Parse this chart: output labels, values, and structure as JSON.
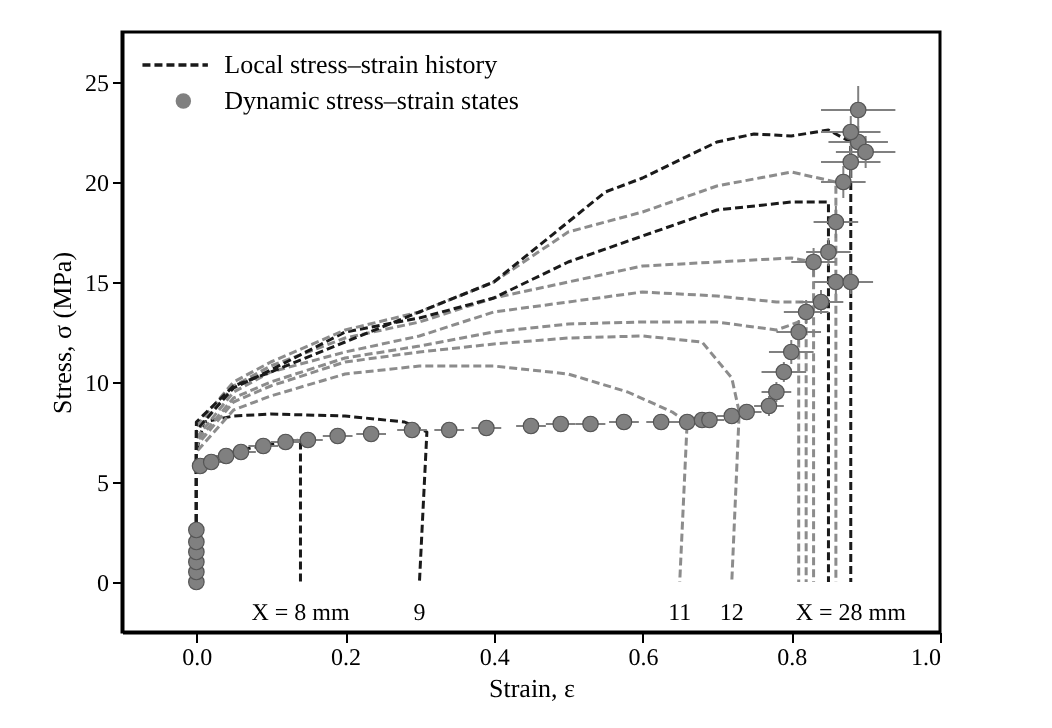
{
  "chart_data": {
    "type": "line",
    "xlabel": "Strain, ε",
    "ylabel": "Stress, σ (MPa)",
    "xlim": [
      -0.1,
      1.0
    ],
    "ylim": [
      -2.5,
      27.5
    ],
    "xticks": [
      {
        "value": 0,
        "label": "0.0"
      },
      0.2,
      0.4,
      0.6,
      0.8,
      {
        "value": 1,
        "label": "1.0"
      }
    ],
    "yticks": [
      0,
      5,
      10,
      15,
      20,
      25
    ],
    "grid": false,
    "legend": "top left",
    "series": [
      {
        "name": "Local stress–strain history",
        "color": "#1a1a1a",
        "line_style": "dashed",
        "x": [
          0.0,
          0.0,
          0.02,
          0.06,
          0.1,
          0.14,
          0.14
        ],
        "values": [
          0,
          6.0,
          6.2,
          6.6,
          6.9,
          7.1,
          0
        ]
      },
      {
        "color": "#1a1a1a",
        "line_style": "dashed",
        "x": [
          0.0,
          0.0,
          0.01,
          0.05,
          0.1,
          0.2,
          0.28,
          0.31,
          0.3
        ],
        "values": [
          0,
          6.5,
          8.0,
          8.3,
          8.4,
          8.3,
          8.0,
          7.5,
          0
        ]
      },
      {
        "color": "#8c8c8c",
        "line_style": "dashed",
        "x": [
          0.0,
          0.0,
          0.05,
          0.1,
          0.2,
          0.3,
          0.4,
          0.5,
          0.58,
          0.64,
          0.66,
          0.65
        ],
        "values": [
          0,
          6.5,
          8.6,
          9.3,
          10.4,
          10.8,
          10.8,
          10.4,
          9.5,
          8.5,
          8.0,
          0
        ]
      },
      {
        "color": "#8c8c8c",
        "line_style": "dashed",
        "x": [
          0.0,
          0.0,
          0.05,
          0.1,
          0.2,
          0.3,
          0.4,
          0.5,
          0.6,
          0.68,
          0.72,
          0.73,
          0.72
        ],
        "values": [
          0,
          6.8,
          9.0,
          9.8,
          11.0,
          11.5,
          11.9,
          12.2,
          12.3,
          12.0,
          10.2,
          8.5,
          0
        ]
      },
      {
        "color": "#8c8c8c",
        "line_style": "dashed",
        "x": [
          0.0,
          0.0,
          0.05,
          0.1,
          0.2,
          0.3,
          0.4,
          0.5,
          0.6,
          0.7,
          0.78,
          0.81,
          0.81
        ],
        "values": [
          0,
          7.0,
          9.2,
          10.0,
          11.2,
          11.8,
          12.5,
          12.9,
          13.0,
          13.0,
          12.6,
          13.0,
          0
        ]
      },
      {
        "color": "#8c8c8c",
        "line_style": "dashed",
        "x": [
          0.0,
          0.0,
          0.05,
          0.1,
          0.2,
          0.3,
          0.4,
          0.5,
          0.6,
          0.7,
          0.78,
          0.82,
          0.82
        ],
        "values": [
          0,
          7.2,
          9.5,
          10.5,
          11.5,
          12.3,
          13.5,
          14.0,
          14.5,
          14.3,
          14.0,
          14.0,
          0
        ]
      },
      {
        "color": "#8c8c8c",
        "line_style": "dashed",
        "x": [
          0.0,
          0.0,
          0.05,
          0.1,
          0.2,
          0.3,
          0.4,
          0.5,
          0.6,
          0.7,
          0.8,
          0.83,
          0.83
        ],
        "values": [
          0,
          7.5,
          9.8,
          10.8,
          12.2,
          13.0,
          14.2,
          15.0,
          15.8,
          16.0,
          16.2,
          16.0,
          0
        ]
      },
      {
        "color": "#1a1a1a",
        "line_style": "dashed",
        "x": [
          0.0,
          0.0,
          0.05,
          0.1,
          0.2,
          0.3,
          0.4,
          0.5,
          0.6,
          0.7,
          0.8,
          0.85,
          0.85
        ],
        "values": [
          0,
          7.6,
          9.7,
          10.6,
          12.5,
          13.2,
          14.2,
          16.0,
          17.3,
          18.6,
          19.0,
          19.0,
          0
        ]
      },
      {
        "color": "#8c8c8c",
        "line_style": "dashed",
        "x": [
          0.0,
          0.0,
          0.05,
          0.1,
          0.2,
          0.3,
          0.4,
          0.5,
          0.6,
          0.7,
          0.8,
          0.86,
          0.86
        ],
        "values": [
          0,
          7.8,
          10.0,
          11.0,
          12.6,
          13.5,
          15.0,
          17.5,
          18.5,
          19.8,
          20.5,
          20.0,
          0
        ]
      },
      {
        "color": "#1a1a1a",
        "line_style": "dashed",
        "x": [
          0.0,
          0.0,
          0.05,
          0.1,
          0.2,
          0.3,
          0.4,
          0.45,
          0.5,
          0.55,
          0.6,
          0.7,
          0.75,
          0.8,
          0.85,
          0.88,
          0.88
        ],
        "values": [
          0,
          8.0,
          9.8,
          10.5,
          12.0,
          13.5,
          15.0,
          16.5,
          18.0,
          19.5,
          20.2,
          22.0,
          22.4,
          22.3,
          22.6,
          22.0,
          0
        ]
      },
      {
        "type": "scatter",
        "name": "Dynamic stress–strain states",
        "color": "#808080",
        "marker": "circle",
        "x": [
          0.0,
          0.0,
          0.0,
          0.0,
          0.0,
          0.0,
          0.005,
          0.02,
          0.04,
          0.06,
          0.09,
          0.12,
          0.15,
          0.19,
          0.235,
          0.29,
          0.34,
          0.39,
          0.45,
          0.49,
          0.53,
          0.575,
          0.625,
          0.66,
          0.68,
          0.69,
          0.72,
          0.74,
          0.77,
          0.78,
          0.79,
          0.8,
          0.81,
          0.82,
          0.84,
          0.86,
          0.88,
          0.83,
          0.85,
          0.86,
          0.87,
          0.88,
          0.89,
          0.9,
          0.88,
          0.89
        ],
        "values": [
          0.0,
          0.5,
          1.0,
          1.5,
          2.0,
          2.6,
          5.8,
          6.0,
          6.3,
          6.5,
          6.8,
          7.0,
          7.1,
          7.3,
          7.4,
          7.6,
          7.6,
          7.7,
          7.8,
          7.9,
          7.9,
          8.0,
          8.0,
          8.0,
          8.1,
          8.1,
          8.3,
          8.5,
          8.8,
          9.5,
          10.5,
          11.5,
          12.5,
          13.5,
          14.0,
          15.0,
          15.0,
          16.0,
          16.5,
          18.0,
          20.0,
          21.0,
          22.0,
          21.5,
          22.5,
          23.6
        ],
        "errors": [
          null,
          null,
          null,
          null,
          null,
          null,
          0.3,
          0.3,
          0.3,
          0.3,
          0.4,
          0.4,
          0.4,
          0.4,
          0.4,
          0.4,
          0.4,
          0.4,
          0.4,
          0.4,
          0.4,
          0.4,
          0.4,
          0.4,
          0.4,
          0.4,
          0.4,
          0.4,
          0.5,
          0.5,
          0.5,
          0.6,
          0.6,
          0.6,
          0.6,
          0.6,
          0.6,
          0.7,
          0.7,
          0.8,
          0.8,
          0.8,
          0.8,
          0.8,
          0.8,
          1.2
        ],
        "xerrors": [
          null,
          null,
          null,
          null,
          null,
          null,
          0.01,
          0.015,
          0.015,
          0.02,
          0.02,
          0.02,
          0.02,
          0.02,
          0.02,
          0.02,
          0.02,
          0.02,
          0.02,
          0.02,
          0.02,
          0.02,
          0.02,
          0.02,
          0.02,
          0.02,
          0.02,
          0.02,
          0.02,
          0.02,
          0.03,
          0.03,
          0.03,
          0.03,
          0.03,
          0.03,
          0.03,
          0.03,
          0.03,
          0.03,
          0.03,
          0.04,
          0.04,
          0.04,
          0.04,
          0.05
        ]
      }
    ],
    "annotations": [
      {
        "text": "X = 8 mm",
        "x": 0.14,
        "y": 0
      },
      {
        "text": "9",
        "x": 0.3,
        "y": 0
      },
      {
        "text": "11",
        "x": 0.65,
        "y": 0
      },
      {
        "text": "12",
        "x": 0.72,
        "y": 0
      },
      {
        "text": "X = 28 mm",
        "x": 0.88,
        "y": 0
      }
    ]
  }
}
